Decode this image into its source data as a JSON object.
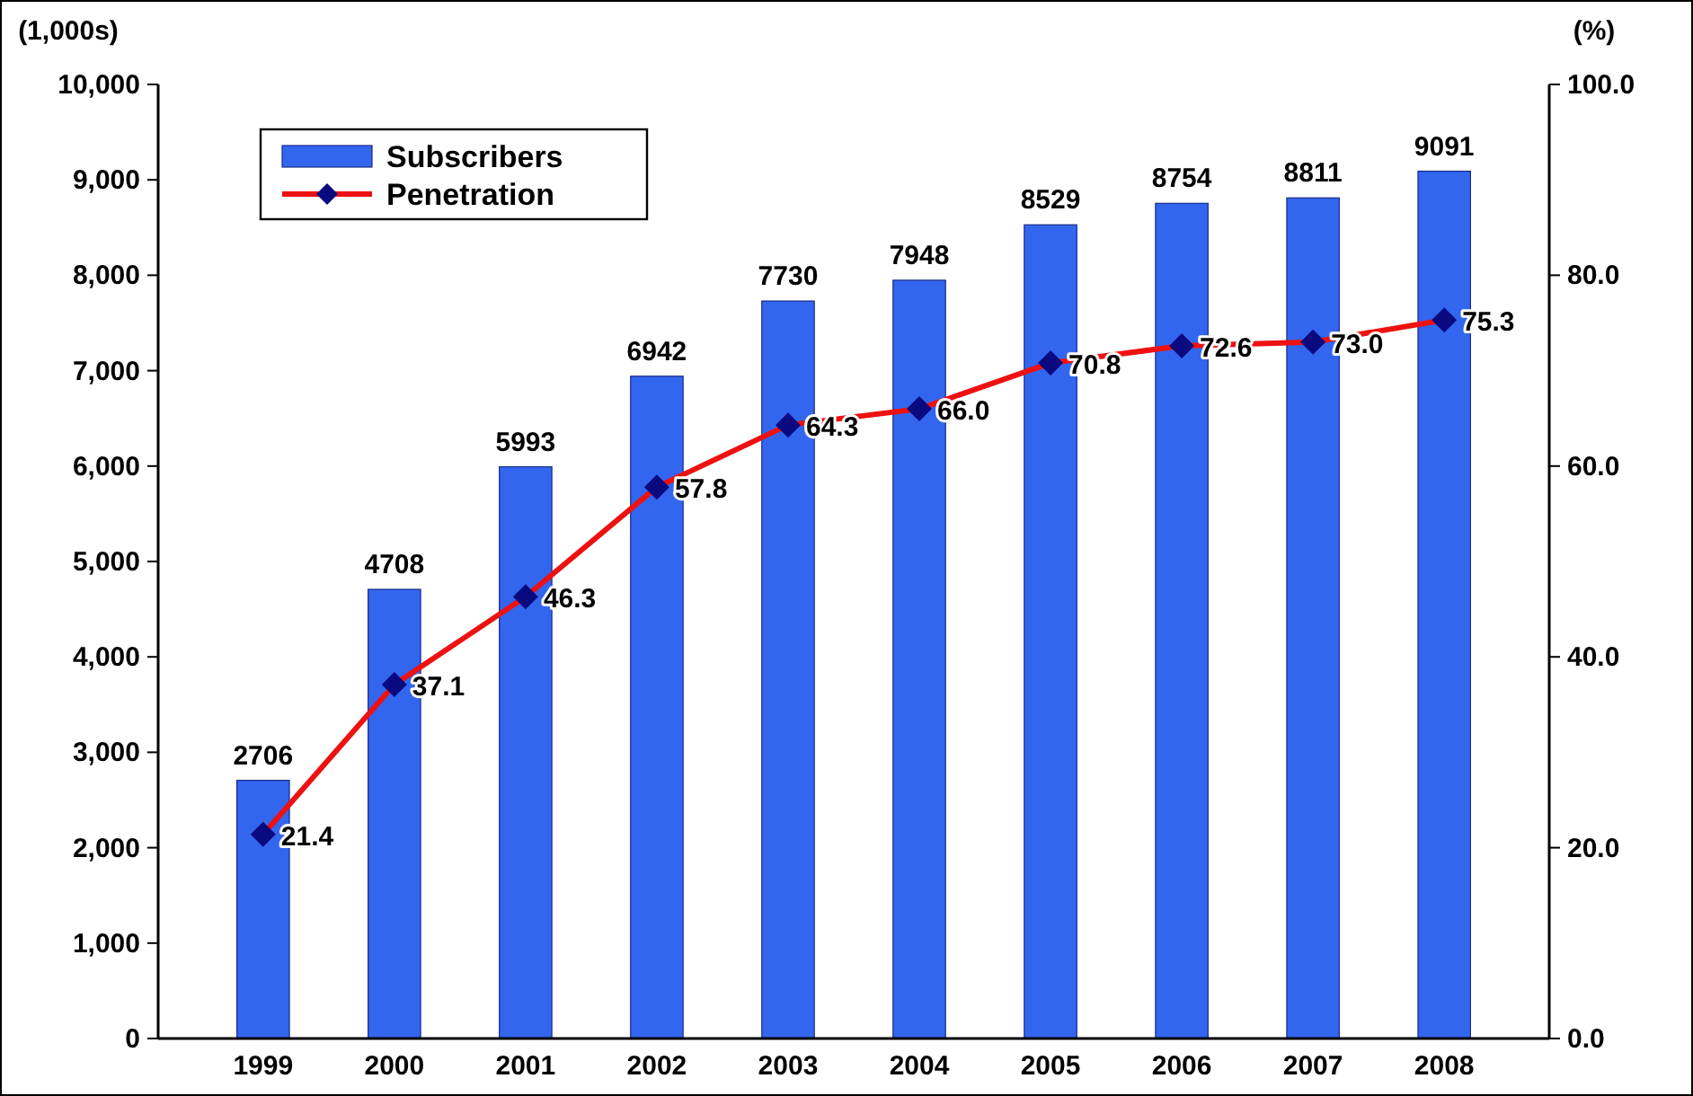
{
  "chart_data": {
    "type": "bar",
    "categories": [
      "1999",
      "2000",
      "2001",
      "2002",
      "2003",
      "2004",
      "2005",
      "2006",
      "2007",
      "2008"
    ],
    "series": [
      {
        "name": "Subscribers",
        "color": "#3366ee",
        "values": [
          2706,
          4708,
          5993,
          6942,
          7730,
          7948,
          8529,
          8754,
          8811,
          9091
        ],
        "value_labels": [
          "2706",
          "4708",
          "5993",
          "6942",
          "7730",
          "7948",
          "8529",
          "8754",
          "8811",
          "9091"
        ]
      },
      {
        "name": "Penetration",
        "type": "line",
        "axis": "y2",
        "color": "#ee1111",
        "values": [
          21.4,
          37.1,
          46.3,
          57.8,
          64.3,
          66.0,
          70.8,
          72.6,
          73.0,
          75.3
        ],
        "value_labels": [
          "21.4",
          "37.1",
          "46.3",
          "57.8",
          "64.3",
          "66.0",
          "70.8",
          "72.6",
          "73.0",
          "75.3"
        ]
      }
    ],
    "ylabel": "(1,000s)",
    "y2label": "(%)",
    "ylim": [
      0,
      10000
    ],
    "yticks": [
      0,
      {
        "value": 1000,
        "label": "1,000"
      },
      {
        "value": 2000,
        "label": "2,000"
      },
      {
        "value": 3000,
        "label": "3,000"
      },
      {
        "value": 4000,
        "label": "4,000"
      },
      {
        "value": 5000,
        "label": "5,000"
      },
      {
        "value": 6000,
        "label": "6,000"
      },
      {
        "value": 7000,
        "label": "7,000"
      },
      {
        "value": 8000,
        "label": "8,000"
      },
      {
        "value": 9000,
        "label": "9,000"
      },
      {
        "value": 10000,
        "label": "10,000"
      }
    ],
    "y2lim": [
      0,
      100
    ],
    "y2ticks": [
      {
        "value": 0,
        "label": "0.0"
      },
      {
        "value": 20,
        "label": "20.0"
      },
      {
        "value": 40,
        "label": "40.0"
      },
      {
        "value": 60,
        "label": "60.0"
      },
      {
        "value": 80,
        "label": "80.0"
      },
      {
        "value": 100,
        "label": "100.0"
      }
    ],
    "legend": "top left",
    "marker": "diamond",
    "grid": false
  }
}
